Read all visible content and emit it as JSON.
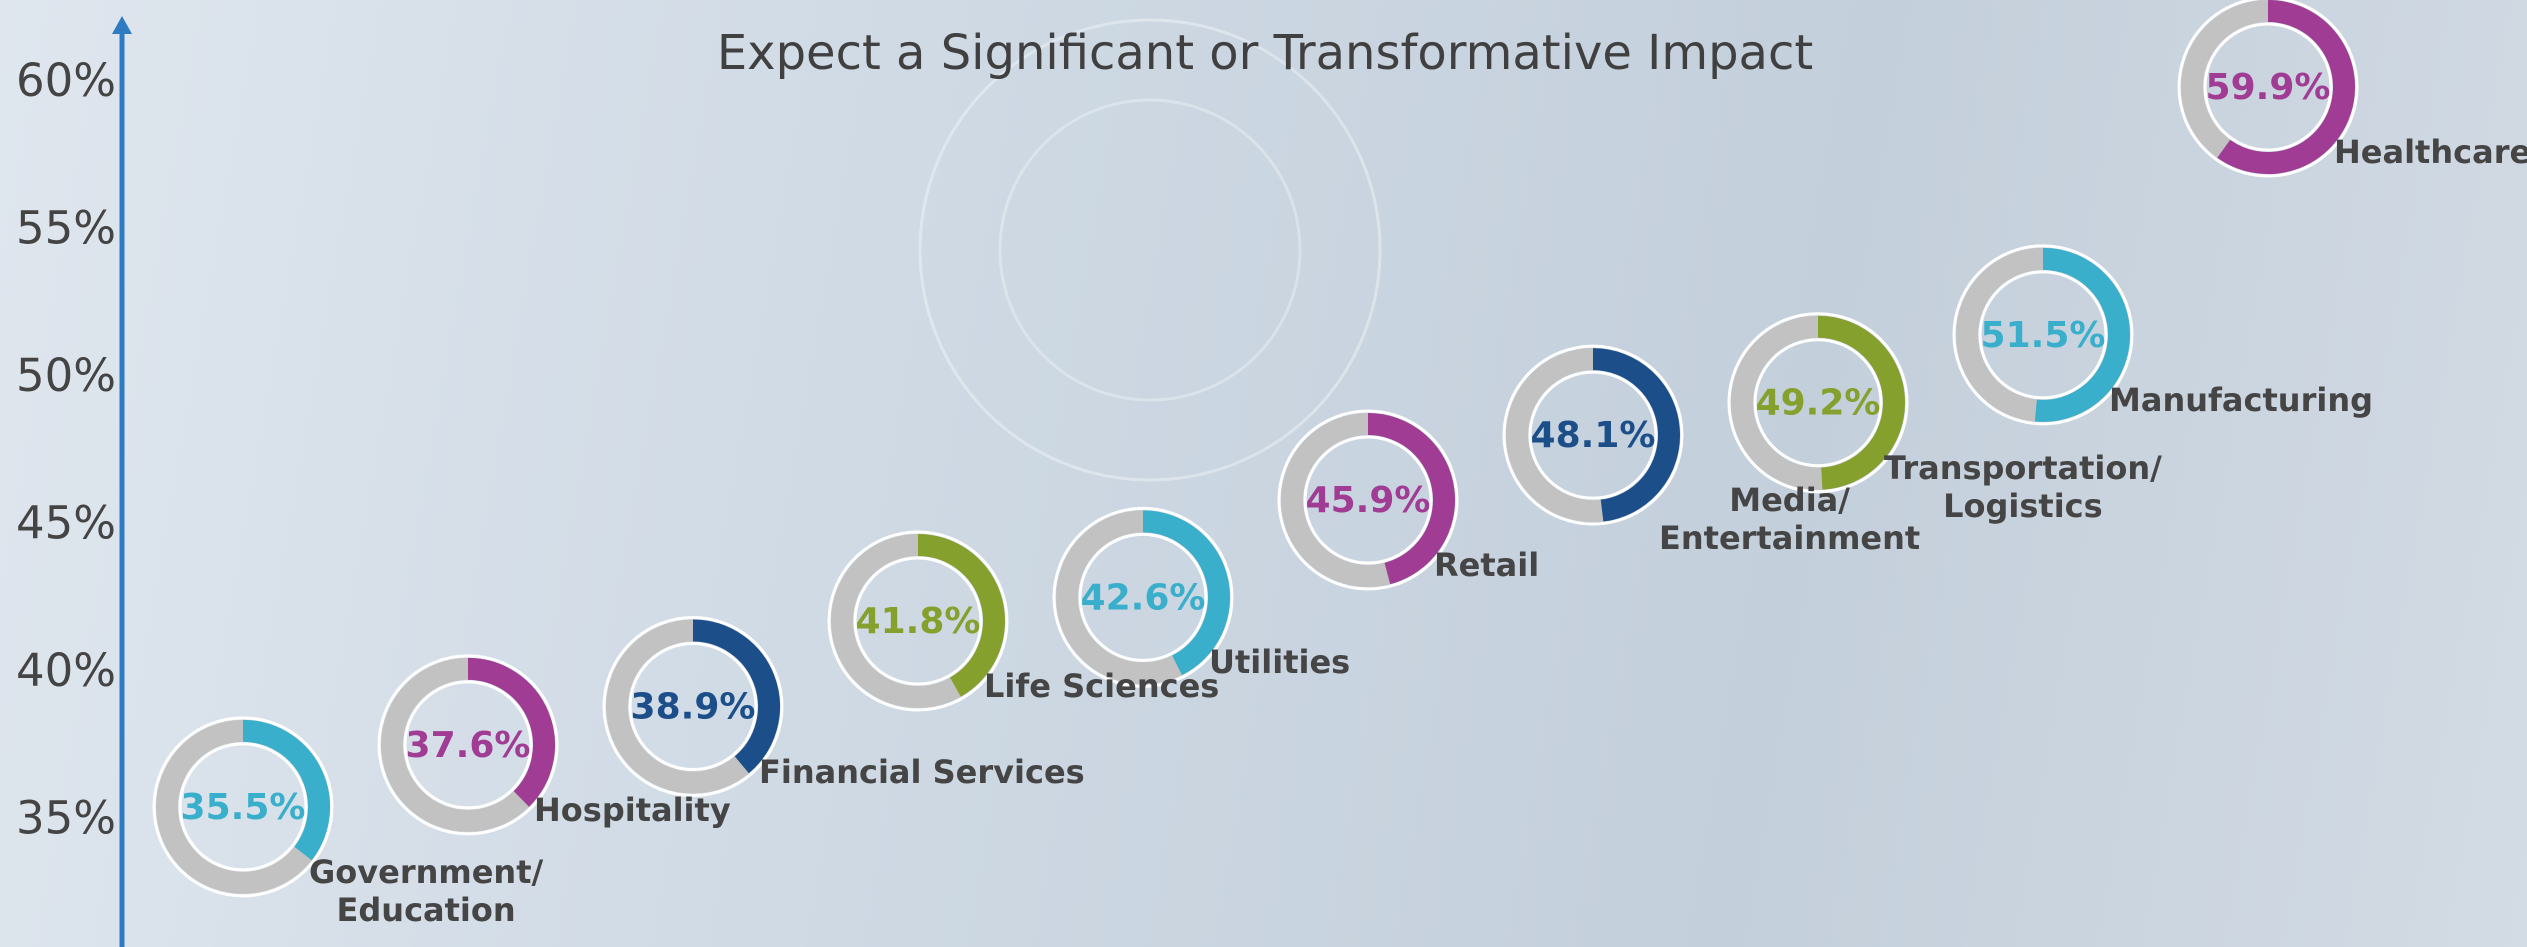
{
  "chart_data": {
    "type": "donut-scatter",
    "title": "Expect a Significant or Transformative Impact",
    "categories": [
      "Government/\nEducation",
      "Hospitality",
      "Financial Services",
      "Life Sciences",
      "Utilities",
      "Retail",
      "Media/\nEntertainment",
      "Transportation/\nLogistics",
      "Manufacturing",
      "Healthcare"
    ],
    "values": [
      35.5,
      37.6,
      38.9,
      41.8,
      42.6,
      45.9,
      48.1,
      49.2,
      51.5,
      59.9
    ],
    "value_labels": [
      "35.5%",
      "37.6%",
      "38.9%",
      "41.8%",
      "42.6%",
      "45.9%",
      "48.1%",
      "49.2%",
      "51.5%",
      "59.9%"
    ],
    "colors": [
      "#3aafcb",
      "#a03c93",
      "#1c4f89",
      "#86a02e",
      "#3aafcb",
      "#a03c93",
      "#1c4f89",
      "#86a02e",
      "#3aafcb",
      "#a03c93"
    ],
    "ylim": [
      30.75,
      62.85
    ],
    "yticks": [
      {
        "value": 35,
        "label": "35%"
      },
      {
        "value": 40,
        "label": "40%"
      },
      {
        "value": 45,
        "label": "45%"
      },
      {
        "value": 50,
        "label": "50%"
      },
      {
        "value": 55,
        "label": "55%"
      },
      {
        "value": 60,
        "label": "60%"
      }
    ],
    "axis_color": "#2f7bc2"
  }
}
